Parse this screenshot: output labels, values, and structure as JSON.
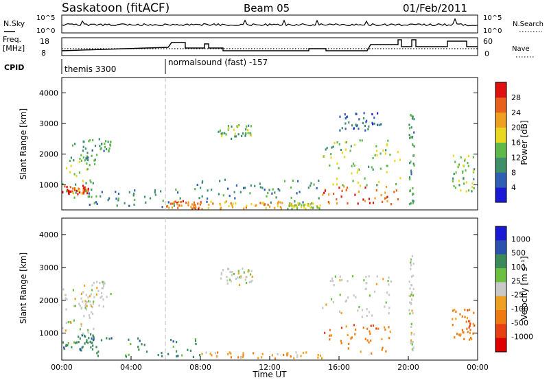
{
  "header": {
    "station": "Saskatoon (fitACF)",
    "beam": "Beam 05",
    "date": "01/Feb/2011"
  },
  "colors": {
    "power_scale": [
      "#1a1ad6",
      "#2e5fb5",
      "#3f8f6a",
      "#5fb84a",
      "#e8d820",
      "#f0a020",
      "#e8601a",
      "#e01010"
    ],
    "velocity_scale": [
      "#1a1ad6",
      "#2a50b0",
      "#3a8a5a",
      "#6cc040",
      "#c8c8c8",
      "#f0a020",
      "#f07a10",
      "#e84010",
      "#e00000"
    ],
    "velocity_grey": "#c8c8c8"
  },
  "top_panels": {
    "nsky_label": "N.Sky",
    "nsky_ticks": [
      "10^5",
      "10^0"
    ],
    "nsearch_label": "N.Search",
    "nsearch_ticks": [
      "10^5",
      "10^0"
    ],
    "freq_label_1": "Freq.",
    "freq_label_2": "[MHz]",
    "freq_ticks": [
      "18",
      "8"
    ],
    "nave_label": "Nave",
    "nave_ticks": [
      "60",
      "0"
    ],
    "cpid_label": "CPID",
    "cpid_modes": [
      {
        "name": "themis 3300",
        "start_hour": 0,
        "end_hour": 6
      },
      {
        "name": "normalsound (fast) -157",
        "start_hour": 6,
        "end_hour": 24
      }
    ]
  },
  "chart_data": [
    {
      "type": "heatmap",
      "panel": "power",
      "xlabel": "",
      "ylabel": "Slant Range [km]",
      "xlim": [
        0,
        24
      ],
      "ylim": [
        180,
        4500
      ],
      "yticks": [
        "1000",
        "2000",
        "3000",
        "4000"
      ],
      "colorbar": {
        "label": "Power [dB]",
        "ticks": [
          "4",
          "8",
          "12",
          "16",
          "20",
          "24",
          "28"
        ],
        "range": [
          0,
          30
        ]
      },
      "regions": [
        {
          "x": [
            0.0,
            1.5
          ],
          "y": [
            700,
            1000
          ],
          "value": 28
        },
        {
          "x": [
            0.0,
            2.0
          ],
          "y": [
            600,
            2400
          ],
          "value": 12
        },
        {
          "x": [
            1.0,
            2.8
          ],
          "y": [
            1800,
            2600
          ],
          "value": 10
        },
        {
          "x": [
            1.5,
            7.0
          ],
          "y": [
            300,
            900
          ],
          "value": 8
        },
        {
          "x": [
            6.0,
            8.0
          ],
          "y": [
            250,
            500
          ],
          "value": 24
        },
        {
          "x": [
            8.0,
            13.0
          ],
          "y": [
            250,
            500
          ],
          "value": 20
        },
        {
          "x": [
            13.0,
            15.0
          ],
          "y": [
            250,
            450
          ],
          "value": 16
        },
        {
          "x": [
            7.5,
            15.0
          ],
          "y": [
            450,
            1200
          ],
          "value": 8
        },
        {
          "x": [
            9.0,
            11.0
          ],
          "y": [
            2500,
            3000
          ],
          "value": 12
        },
        {
          "x": [
            15.0,
            19.5
          ],
          "y": [
            400,
            1000
          ],
          "value": 26
        },
        {
          "x": [
            15.0,
            19.5
          ],
          "y": [
            1000,
            2500
          ],
          "value": 14
        },
        {
          "x": [
            16.0,
            18.5
          ],
          "y": [
            2800,
            3400
          ],
          "value": 6
        },
        {
          "x": [
            20.0,
            20.3
          ],
          "y": [
            400,
            3400
          ],
          "value": 10
        },
        {
          "x": [
            22.5,
            23.8
          ],
          "y": [
            800,
            2000
          ],
          "value": 14
        }
      ]
    },
    {
      "type": "heatmap",
      "panel": "velocity",
      "xlabel": "Time UT",
      "ylabel": "Slant Range [km]",
      "xlim": [
        0,
        24
      ],
      "ylim": [
        180,
        4500
      ],
      "xticks": [
        "00:00",
        "04:00",
        "08:00",
        "12:00",
        "16:00",
        "20:00",
        "00:00"
      ],
      "yticks": [
        "1000",
        "2000",
        "3000",
        "4000"
      ],
      "colorbar": {
        "label": "Velocity [m s⁻¹]",
        "ticks": [
          "1000",
          "500",
          "100",
          "25",
          "-25",
          "-100",
          "-500",
          "-1000"
        ]
      },
      "regions": [
        {
          "x": [
            0.0,
            2.0
          ],
          "y": [
            500,
            1000
          ],
          "value": 80
        },
        {
          "x": [
            0.0,
            2.0
          ],
          "y": [
            1000,
            2400
          ],
          "value": 0
        },
        {
          "x": [
            1.0,
            2.8
          ],
          "y": [
            1800,
            2600
          ],
          "value": 0
        },
        {
          "x": [
            1.5,
            8.0
          ],
          "y": [
            300,
            900
          ],
          "value": 60
        },
        {
          "x": [
            8.0,
            15.0
          ],
          "y": [
            250,
            450
          ],
          "value": -60
        },
        {
          "x": [
            9.0,
            11.0
          ],
          "y": [
            2500,
            3000
          ],
          "value": 0
        },
        {
          "x": [
            15.0,
            19.0
          ],
          "y": [
            400,
            1300
          ],
          "value": -250
        },
        {
          "x": [
            15.0,
            19.0
          ],
          "y": [
            1500,
            2800
          ],
          "value": 0
        },
        {
          "x": [
            20.0,
            20.3
          ],
          "y": [
            500,
            3400
          ],
          "value": 0
        },
        {
          "x": [
            22.5,
            23.8
          ],
          "y": [
            800,
            1800
          ],
          "value": -120
        }
      ]
    }
  ]
}
